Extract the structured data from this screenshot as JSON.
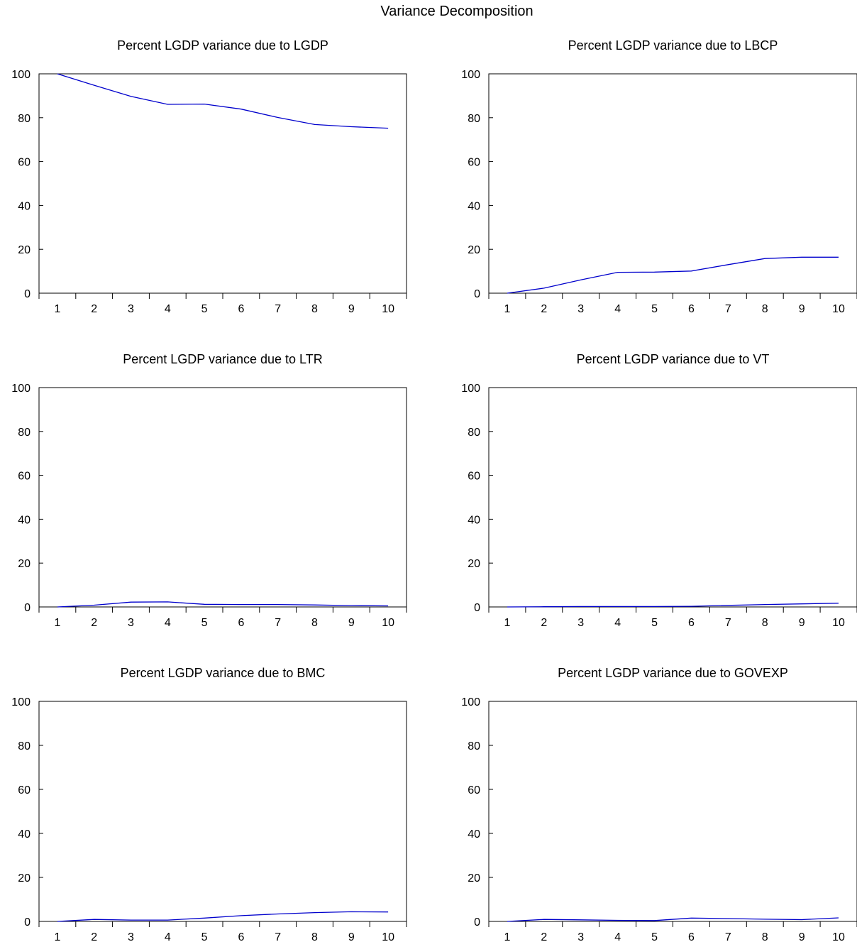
{
  "title": "Variance Decomposition",
  "chart_data": [
    {
      "type": "line",
      "title": "Percent LGDP variance due to LGDP",
      "categories": [
        "1",
        "2",
        "3",
        "4",
        "5",
        "6",
        "7",
        "8",
        "9",
        "10"
      ],
      "ylim": [
        0,
        100
      ],
      "yticks": [
        "0",
        "20",
        "40",
        "60",
        "80",
        "100"
      ],
      "series": [
        {
          "values": [
            100,
            94.8,
            89.7,
            86.1,
            86.2,
            83.9,
            80.1,
            76.9,
            75.9,
            75.2
          ]
        }
      ],
      "color": "#0000cc"
    },
    {
      "type": "line",
      "title": "Percent LGDP variance due to LBCP",
      "categories": [
        "1",
        "2",
        "3",
        "4",
        "5",
        "6",
        "7",
        "8",
        "9",
        "10"
      ],
      "ylim": [
        0,
        100
      ],
      "yticks": [
        "0",
        "20",
        "40",
        "60",
        "80",
        "100"
      ],
      "series": [
        {
          "values": [
            0,
            2.3,
            6.1,
            9.5,
            9.6,
            10.1,
            13.0,
            15.8,
            16.4,
            16.4
          ]
        }
      ],
      "color": "#0000cc"
    },
    {
      "type": "line",
      "title": "Percent LGDP variance due to LTR",
      "categories": [
        "1",
        "2",
        "3",
        "4",
        "5",
        "6",
        "7",
        "8",
        "9",
        "10"
      ],
      "ylim": [
        0,
        100
      ],
      "yticks": [
        "0",
        "20",
        "40",
        "60",
        "80",
        "100"
      ],
      "series": [
        {
          "values": [
            0,
            0.8,
            2.2,
            2.3,
            1.2,
            1.1,
            1.1,
            0.9,
            0.6,
            0.5
          ]
        }
      ],
      "color": "#0000cc"
    },
    {
      "type": "line",
      "title": "Percent LGDP variance due to VT",
      "categories": [
        "1",
        "2",
        "3",
        "4",
        "5",
        "6",
        "7",
        "8",
        "9",
        "10"
      ],
      "ylim": [
        0,
        100
      ],
      "yticks": [
        "0",
        "20",
        "40",
        "60",
        "80",
        "100"
      ],
      "series": [
        {
          "values": [
            0,
            0.1,
            0.2,
            0.2,
            0.2,
            0.3,
            0.7,
            1.1,
            1.4,
            1.7
          ]
        }
      ],
      "color": "#0000cc"
    },
    {
      "type": "line",
      "title": "Percent LGDP variance due to BMC",
      "categories": [
        "1",
        "2",
        "3",
        "4",
        "5",
        "6",
        "7",
        "8",
        "9",
        "10"
      ],
      "ylim": [
        0,
        100
      ],
      "yticks": [
        "0",
        "20",
        "40",
        "60",
        "80",
        "100"
      ],
      "series": [
        {
          "values": [
            0,
            0.9,
            0.6,
            0.6,
            1.5,
            2.6,
            3.4,
            4.0,
            4.4,
            4.3
          ]
        }
      ],
      "color": "#0000cc"
    },
    {
      "type": "line",
      "title": "Percent LGDP variance due to GOVEXP",
      "categories": [
        "1",
        "2",
        "3",
        "4",
        "5",
        "6",
        "7",
        "8",
        "9",
        "10"
      ],
      "ylim": [
        0,
        100
      ],
      "yticks": [
        "0",
        "20",
        "40",
        "60",
        "80",
        "100"
      ],
      "series": [
        {
          "values": [
            0,
            0.9,
            0.7,
            0.5,
            0.4,
            1.5,
            1.3,
            1.0,
            0.8,
            1.6
          ]
        }
      ],
      "color": "#0000cc"
    }
  ]
}
